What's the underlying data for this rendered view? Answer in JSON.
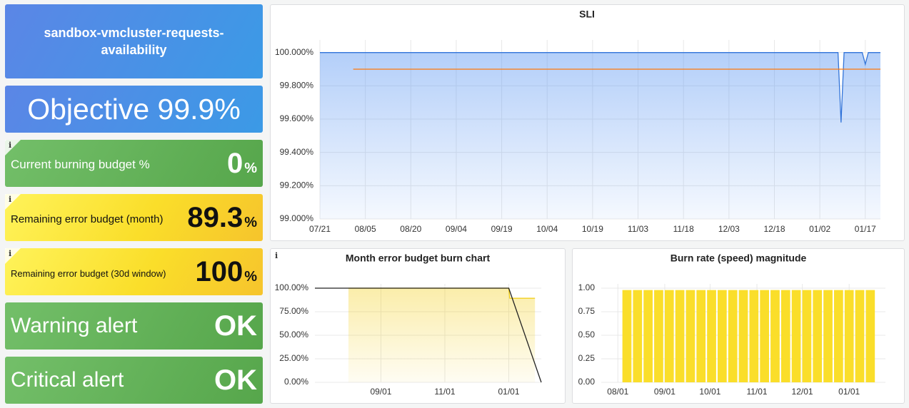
{
  "panels": {
    "title": "sandbox-vmcluster-requests-availability",
    "objective": "Objective 99.9%",
    "info_icon": "i",
    "stats": [
      {
        "label": "Current burning budget %",
        "value": 0,
        "unit": "%",
        "color": "green"
      },
      {
        "label": "Remaining error budget (month)",
        "value": 89.3,
        "unit": "%",
        "color": "yellow"
      },
      {
        "label": "Remaining error budget (30d window)",
        "value": 100,
        "unit": "%",
        "color": "yellow"
      }
    ],
    "alerts": [
      {
        "label": "Warning alert",
        "status": "OK"
      },
      {
        "label": "Critical alert",
        "status": "OK"
      }
    ]
  },
  "chart_data": [
    {
      "type": "line",
      "title": "SLI",
      "xlim": [
        "07/21",
        "01/22"
      ],
      "xticks": [
        "07/21",
        "08/05",
        "08/20",
        "09/04",
        "09/19",
        "10/04",
        "10/19",
        "11/03",
        "11/18",
        "12/03",
        "12/18",
        "01/02",
        "01/17"
      ],
      "ylim": [
        99,
        100.05
      ],
      "yticks": [
        {
          "value": 99,
          "label": "99.000%"
        },
        {
          "value": 99.2,
          "label": "99.200%"
        },
        {
          "value": 99.4,
          "label": "99.400%"
        },
        {
          "value": 99.6,
          "label": "99.600%"
        },
        {
          "value": 99.8,
          "label": "99.800%"
        },
        {
          "value": 100,
          "label": "100.000%"
        }
      ],
      "grid": true,
      "series": [
        {
          "color": "#3274d9",
          "fill": true,
          "x": [
            "07/21",
            "01/08",
            "01/09",
            "01/10",
            "01/16",
            "01/17",
            "01/18",
            "01/22"
          ],
          "values": [
            100,
            100,
            99.58,
            100,
            100,
            99.93,
            100,
            100
          ]
        },
        {
          "color": "#ff780a",
          "x": [
            "08/01",
            "01/22"
          ],
          "values": [
            99.9,
            99.9
          ]
        }
      ]
    },
    {
      "type": "line",
      "title": "Month error budget burn chart",
      "xlim": [
        "06/30",
        "02/01"
      ],
      "xticks": [
        "09/01",
        "11/01",
        "01/01"
      ],
      "ylim": [
        0,
        100
      ],
      "yticks": [
        {
          "value": 0,
          "label": "0.00%"
        },
        {
          "value": 25,
          "label": "25.00%"
        },
        {
          "value": 50,
          "label": "50.00%"
        },
        {
          "value": 75,
          "label": "75.00%"
        },
        {
          "value": 100,
          "label": "100.00%"
        }
      ],
      "grid": true,
      "series": [
        {
          "color": "#f2cc0c",
          "fill": true,
          "x": [
            "08/01",
            "01/01",
            "01/02",
            "01/26"
          ],
          "values": [
            100,
            100,
            89.3,
            89.3
          ]
        },
        {
          "color": "#222222",
          "x": [
            "06/30",
            "01/01",
            "02/01"
          ],
          "values": [
            100,
            100,
            0
          ]
        }
      ]
    },
    {
      "type": "bar",
      "title": "Burn rate (speed) magnitude",
      "xlim": [
        "07/21",
        "01/25"
      ],
      "xticks": [
        "08/01",
        "09/01",
        "10/01",
        "11/01",
        "12/01",
        "01/01"
      ],
      "ylim": [
        0,
        1
      ],
      "yticks": [
        {
          "value": 0,
          "label": "0.00"
        },
        {
          "value": 0.25,
          "label": "0.25"
        },
        {
          "value": 0.5,
          "label": "0.50"
        },
        {
          "value": 0.75,
          "label": "0.75"
        },
        {
          "value": 1,
          "label": "1.00"
        }
      ],
      "grid": true,
      "color": "#fade2a",
      "x": [
        "08/04",
        "08/11",
        "08/18",
        "08/25",
        "09/01",
        "09/08",
        "09/15",
        "09/22",
        "09/29",
        "10/06",
        "10/13",
        "10/20",
        "10/27",
        "11/03",
        "11/10",
        "11/17",
        "11/24",
        "12/01",
        "12/08",
        "12/15",
        "12/22",
        "12/29",
        "01/05",
        "01/12"
      ],
      "values": [
        0.98,
        0.98,
        0.98,
        0.98,
        0.98,
        0.98,
        0.98,
        0.98,
        0.98,
        0.98,
        0.98,
        0.98,
        0.98,
        0.98,
        0.98,
        0.98,
        0.98,
        0.98,
        0.98,
        0.98,
        0.98,
        0.98,
        0.98,
        0.98
      ]
    }
  ]
}
